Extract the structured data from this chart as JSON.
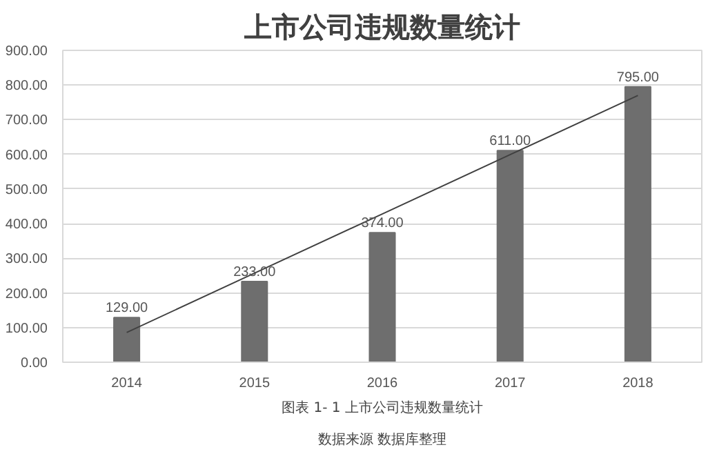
{
  "chart_data": {
    "type": "bar",
    "title": "上市公司违规数量统计",
    "categories": [
      "2014",
      "2015",
      "2016",
      "2017",
      "2018"
    ],
    "series": [
      {
        "color": "#6e6e6e",
        "values": [
          129,
          233,
          374,
          611,
          795
        ],
        "value_labels": [
          "129.00",
          "233.00",
          "374.00",
          "611.00",
          "795.00"
        ]
      },
      {
        "type": "line",
        "color": "#404040",
        "values": [
          86,
          257,
          428,
          599,
          770
        ]
      }
    ],
    "ylim": [
      0,
      900
    ],
    "yticks": [
      {
        "value": 0,
        "label": "0.00"
      },
      {
        "value": 100,
        "label": "100.00"
      },
      {
        "value": 200,
        "label": "200.00"
      },
      {
        "value": 300,
        "label": "300.00"
      },
      {
        "value": 400,
        "label": "400.00"
      },
      {
        "value": 500,
        "label": "500.00"
      },
      {
        "value": 600,
        "label": "600.00"
      },
      {
        "value": 700,
        "label": "700.00"
      },
      {
        "value": 800,
        "label": "800.00"
      },
      {
        "value": 900,
        "label": "900.00"
      }
    ],
    "grid": "y",
    "annotations": [
      "图表 1- 1 上市公司违规数量统计",
      "数据来源 数据库整理"
    ]
  }
}
